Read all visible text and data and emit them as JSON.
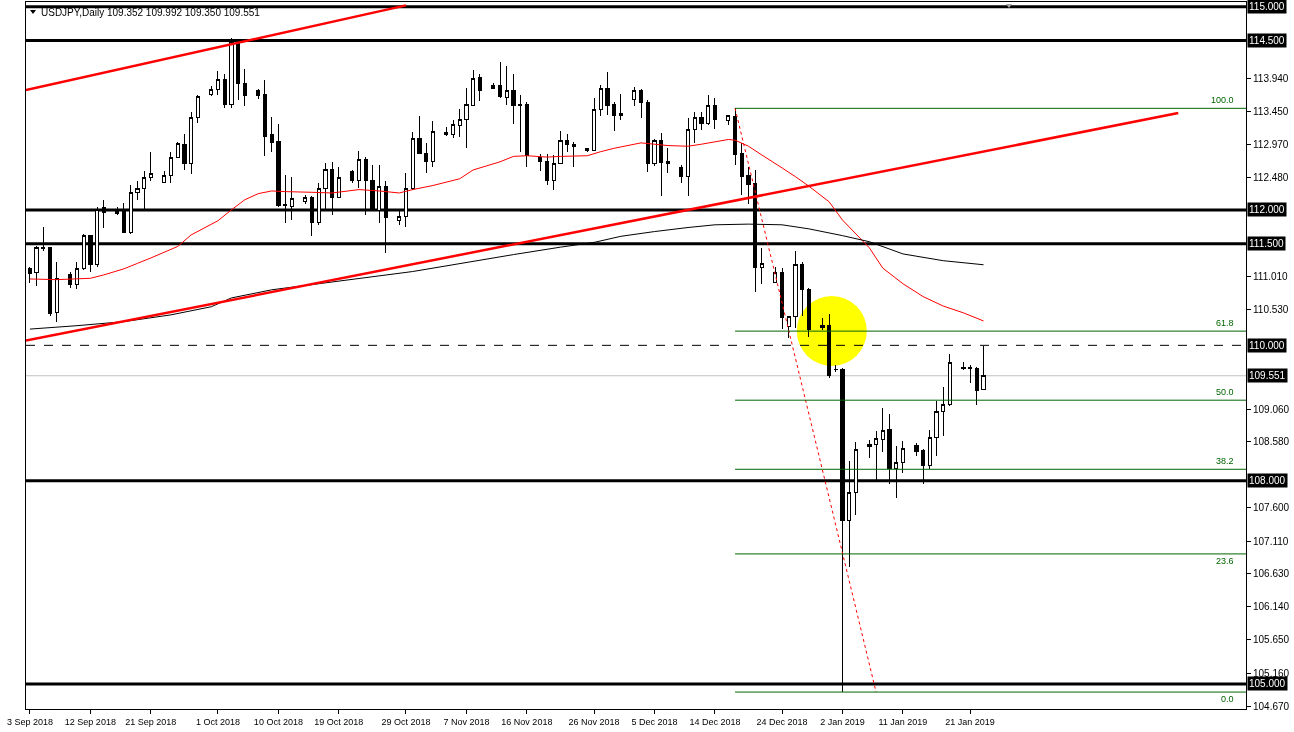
{
  "chart_data": {
    "type": "candlestick",
    "title": "USDJPY,Daily 109.352 109.992 109.350 109.551",
    "x": [
      "2018-09-03",
      "2018-09-04",
      "2018-09-05",
      "2018-09-06",
      "2018-09-07",
      "2018-09-09",
      "2018-09-10",
      "2018-09-11",
      "2018-09-12",
      "2018-09-13",
      "2018-09-14",
      "2018-09-16",
      "2018-09-17",
      "2018-09-18",
      "2018-09-19",
      "2018-09-20",
      "2018-09-21",
      "2018-09-23",
      "2018-09-24",
      "2018-09-25",
      "2018-09-26",
      "2018-09-27",
      "2018-09-28",
      "2018-09-30",
      "2018-10-01",
      "2018-10-02",
      "2018-10-03",
      "2018-10-04",
      "2018-10-05",
      "2018-10-07",
      "2018-10-08",
      "2018-10-09",
      "2018-10-10",
      "2018-10-11",
      "2018-10-12",
      "2018-10-14",
      "2018-10-15",
      "2018-10-16",
      "2018-10-17",
      "2018-10-18",
      "2018-10-19",
      "2018-10-21",
      "2018-10-22",
      "2018-10-23",
      "2018-10-24",
      "2018-10-25",
      "2018-10-26",
      "2018-10-28",
      "2018-10-29",
      "2018-10-30",
      "2018-10-31",
      "2018-11-01",
      "2018-11-02",
      "2018-11-04",
      "2018-11-05",
      "2018-11-06",
      "2018-11-07",
      "2018-11-08",
      "2018-11-09",
      "2018-11-11",
      "2018-11-12",
      "2018-11-13",
      "2018-11-14",
      "2018-11-15",
      "2018-11-16",
      "2018-11-18",
      "2018-11-19",
      "2018-11-20",
      "2018-11-21",
      "2018-11-22",
      "2018-11-23",
      "2018-11-25",
      "2018-11-26",
      "2018-11-27",
      "2018-11-28",
      "2018-11-29",
      "2018-11-30",
      "2018-12-02",
      "2018-12-03",
      "2018-12-04",
      "2018-12-05",
      "2018-12-06",
      "2018-12-07",
      "2018-12-09",
      "2018-12-10",
      "2018-12-11",
      "2018-12-12",
      "2018-12-13",
      "2018-12-14",
      "2018-12-16",
      "2018-12-17",
      "2018-12-18",
      "2018-12-19",
      "2018-12-20",
      "2018-12-21",
      "2018-12-23",
      "2018-12-24",
      "2018-12-25",
      "2018-12-26",
      "2018-12-27",
      "2018-12-28",
      "2018-12-30",
      "2018-12-31",
      "2019-01-01",
      "2019-01-02",
      "2019-01-03",
      "2019-01-04",
      "2019-01-06",
      "2019-01-07",
      "2019-01-08",
      "2019-01-09",
      "2019-01-10",
      "2019-01-11",
      "2019-01-13",
      "2019-01-14",
      "2019-01-15",
      "2019-01-16",
      "2019-01-17",
      "2019-01-18",
      "2019-01-20",
      "2019-01-21",
      "2019-01-22",
      "2019-01-23"
    ],
    "ohlc": [
      [
        111.14,
        111.16,
        110.92,
        111.06
      ],
      [
        111.07,
        111.47,
        110.88,
        111.45
      ],
      [
        111.45,
        111.75,
        111.39,
        111.43
      ],
      [
        111.44,
        111.45,
        110.44,
        110.47
      ],
      [
        110.48,
        111.23,
        110.35,
        110.98
      ],
      [
        111.04,
        111.08,
        110.85,
        110.9
      ],
      [
        110.9,
        111.23,
        110.83,
        111.13
      ],
      [
        111.13,
        111.64,
        111.12,
        111.62
      ],
      [
        111.62,
        111.63,
        111.09,
        111.2
      ],
      [
        111.2,
        112.05,
        111.16,
        112.01
      ],
      [
        112.03,
        112.15,
        111.73,
        111.96
      ],
      [
        112.01,
        112.05,
        111.93,
        111.95
      ],
      [
        111.98,
        112.1,
        111.66,
        111.67
      ],
      [
        111.67,
        112.37,
        111.65,
        112.26
      ],
      [
        112.26,
        112.43,
        112.14,
        112.32
      ],
      [
        112.32,
        112.58,
        112.02,
        112.48
      ],
      [
        112.48,
        112.86,
        112.43,
        112.54
      ],
      [
        112.4,
        112.57,
        112.39,
        112.51
      ],
      [
        112.51,
        112.85,
        112.4,
        112.77
      ],
      [
        112.77,
        113.0,
        112.76,
        112.98
      ],
      [
        112.96,
        113.12,
        112.59,
        112.69
      ],
      [
        112.69,
        113.45,
        112.53,
        113.37
      ],
      [
        113.37,
        113.7,
        113.29,
        113.67
      ],
      [
        113.71,
        113.83,
        113.68,
        113.78
      ],
      [
        113.78,
        114.05,
        113.7,
        113.93
      ],
      [
        113.93,
        114.0,
        113.5,
        113.55
      ],
      [
        113.55,
        114.54,
        113.5,
        114.49
      ],
      [
        114.49,
        114.51,
        113.62,
        113.87
      ],
      [
        113.87,
        114.08,
        113.54,
        113.69
      ],
      [
        113.77,
        113.78,
        113.64,
        113.69
      ],
      [
        113.7,
        113.92,
        112.8,
        113.09
      ],
      [
        113.11,
        113.37,
        112.85,
        113.0
      ],
      [
        113.01,
        113.27,
        112.04,
        112.07
      ],
      [
        112.07,
        112.52,
        111.81,
        112.08
      ],
      [
        112.05,
        112.49,
        111.85,
        112.17
      ],
      [
        112.13,
        112.22,
        112.09,
        112.19
      ],
      [
        112.19,
        112.21,
        111.61,
        111.81
      ],
      [
        111.81,
        112.39,
        111.78,
        112.32
      ],
      [
        112.32,
        112.69,
        111.98,
        112.6
      ],
      [
        112.6,
        112.71,
        111.93,
        112.19
      ],
      [
        112.19,
        112.64,
        112.17,
        112.48
      ],
      [
        112.56,
        112.59,
        112.4,
        112.44
      ],
      [
        112.44,
        112.87,
        112.32,
        112.74
      ],
      [
        112.74,
        112.78,
        111.93,
        112.43
      ],
      [
        112.44,
        112.66,
        111.98,
        111.99
      ],
      [
        111.99,
        112.67,
        111.8,
        112.34
      ],
      [
        112.34,
        112.42,
        111.36,
        111.89
      ],
      [
        111.84,
        111.98,
        111.78,
        111.91
      ],
      [
        111.91,
        112.54,
        111.75,
        112.31
      ],
      [
        112.31,
        113.15,
        112.3,
        113.05
      ],
      [
        113.05,
        113.38,
        112.83,
        112.84
      ],
      [
        112.84,
        112.99,
        112.54,
        112.71
      ],
      [
        112.71,
        113.31,
        112.64,
        113.16
      ],
      [
        113.14,
        113.22,
        113.09,
        113.11
      ],
      [
        113.12,
        113.33,
        113.06,
        113.26
      ],
      [
        113.24,
        113.49,
        113.08,
        113.33
      ],
      [
        113.33,
        113.8,
        112.92,
        113.55
      ],
      [
        113.54,
        114.07,
        113.53,
        113.94
      ],
      [
        113.95,
        114.0,
        113.61,
        113.77
      ],
      [
        113.79,
        113.87,
        113.78,
        113.83
      ],
      [
        113.83,
        114.19,
        113.65,
        113.68
      ],
      [
        113.66,
        114.13,
        113.55,
        113.77
      ],
      [
        113.77,
        114.0,
        113.27,
        113.54
      ],
      [
        113.54,
        113.7,
        112.85,
        113.55
      ],
      [
        113.55,
        113.59,
        112.63,
        112.8
      ],
      [
        112.77,
        112.82,
        112.58,
        112.71
      ],
      [
        112.71,
        112.82,
        112.37,
        112.43
      ],
      [
        112.43,
        112.81,
        112.29,
        112.69
      ],
      [
        112.69,
        113.17,
        112.68,
        113.02
      ],
      [
        113.02,
        113.12,
        112.86,
        112.97
      ],
      [
        112.97,
        113.0,
        112.64,
        112.93
      ],
      [
        112.9,
        112.91,
        112.85,
        112.88
      ],
      [
        112.88,
        113.65,
        112.87,
        113.49
      ],
      [
        113.49,
        113.84,
        113.39,
        113.79
      ],
      [
        113.79,
        114.03,
        113.4,
        113.54
      ],
      [
        113.55,
        113.6,
        113.17,
        113.39
      ],
      [
        113.39,
        113.71,
        113.33,
        113.43
      ],
      [
        113.63,
        113.81,
        113.54,
        113.76
      ],
      [
        113.76,
        113.79,
        113.36,
        113.58
      ],
      [
        113.58,
        113.63,
        112.56,
        112.68
      ],
      [
        112.68,
        113.04,
        112.65,
        113.03
      ],
      [
        113.03,
        113.13,
        112.21,
        112.7
      ],
      [
        112.71,
        112.91,
        112.54,
        112.69
      ],
      [
        112.62,
        112.67,
        112.4,
        112.5
      ],
      [
        112.5,
        113.36,
        112.21,
        113.18
      ],
      [
        113.18,
        113.44,
        112.99,
        113.36
      ],
      [
        113.36,
        113.45,
        113.18,
        113.27
      ],
      [
        113.27,
        113.7,
        113.26,
        113.54
      ],
      [
        113.54,
        113.65,
        113.19,
        113.34
      ],
      [
        113.32,
        113.39,
        113.25,
        113.39
      ],
      [
        113.38,
        113.5,
        112.66,
        112.82
      ],
      [
        112.83,
        112.99,
        112.22,
        112.49
      ],
      [
        112.51,
        112.64,
        112.08,
        112.38
      ],
      [
        112.39,
        112.59,
        110.79,
        111.15
      ],
      [
        111.15,
        111.44,
        110.9,
        111.21
      ],
      [
        110.93,
        111.16,
        110.92,
        111.07
      ],
      [
        111.07,
        111.14,
        110.24,
        110.41
      ],
      [
        110.28,
        110.44,
        110.11,
        110.42
      ],
      [
        110.42,
        111.4,
        110.25,
        111.2
      ],
      [
        111.2,
        111.23,
        110.43,
        110.82
      ],
      [
        110.83,
        110.84,
        110.13,
        110.24
      ],
      [
        110.27,
        110.4,
        110.23,
        110.3
      ],
      [
        110.3,
        110.46,
        109.52,
        109.55
      ],
      [
        109.65,
        109.71,
        109.6,
        109.64
      ],
      [
        109.65,
        109.66,
        104.88,
        107.41
      ],
      [
        107.41,
        108.29,
        106.73,
        107.83
      ],
      [
        107.83,
        108.57,
        107.49,
        108.46
      ],
      [
        108.5,
        108.6,
        108.33,
        108.54
      ],
      [
        108.54,
        108.74,
        108.01,
        108.62
      ],
      [
        108.61,
        109.07,
        108.42,
        108.74
      ],
      [
        108.75,
        108.99,
        107.95,
        108.18
      ],
      [
        108.18,
        108.52,
        107.75,
        108.27
      ],
      [
        108.27,
        108.59,
        108.12,
        108.48
      ],
      [
        108.52,
        108.56,
        108.37,
        108.43
      ],
      [
        108.44,
        108.47,
        107.95,
        108.22
      ],
      [
        108.22,
        108.75,
        108.17,
        108.64
      ],
      [
        108.64,
        109.18,
        108.36,
        109.03
      ],
      [
        109.03,
        109.38,
        108.66,
        109.13
      ],
      [
        109.13,
        109.87,
        109.11,
        109.74
      ],
      [
        109.66,
        109.75,
        109.64,
        109.67
      ],
      [
        109.67,
        109.71,
        109.45,
        109.66
      ],
      [
        109.66,
        109.68,
        109.12,
        109.33
      ],
      [
        109.352,
        109.992,
        109.35,
        109.551
      ]
    ],
    "color": "#000000",
    "colors": [
      "#000000",
      "#ffffff",
      "#000000",
      "#000000",
      "#ffffff",
      "#000000",
      "#ffffff",
      "#ffffff",
      "#000000",
      "#ffffff",
      "#000000",
      "#000000",
      "#000000",
      "#ffffff",
      "#ffffff",
      "#ffffff",
      "#ffffff",
      "#ffffff",
      "#ffffff",
      "#ffffff",
      "#000000",
      "#ffffff",
      "#ffffff",
      "#ffffff",
      "#ffffff",
      "#000000",
      "#ffffff",
      "#000000",
      "#000000",
      "#000000",
      "#000000",
      "#000000",
      "#000000",
      "#000000",
      "#ffffff",
      "#ffffff",
      "#000000",
      "#ffffff",
      "#ffffff",
      "#000000",
      "#ffffff",
      "#000000",
      "#ffffff",
      "#000000",
      "#000000",
      "#ffffff",
      "#000000",
      "#ffffff",
      "#ffffff",
      "#ffffff",
      "#000000",
      "#000000",
      "#ffffff",
      "#000000",
      "#ffffff",
      "#ffffff",
      "#ffffff",
      "#ffffff",
      "#000000",
      "#000000",
      "#000000",
      "#ffffff",
      "#000000",
      "#000000",
      "#000000",
      "#000000",
      "#000000",
      "#ffffff",
      "#ffffff",
      "#000000",
      "#000000",
      "#000000",
      "#ffffff",
      "#ffffff",
      "#000000",
      "#000000",
      "#000000",
      "#ffffff",
      "#000000",
      "#000000",
      "#ffffff",
      "#000000",
      "#000000",
      "#000000",
      "#ffffff",
      "#ffffff",
      "#000000",
      "#ffffff",
      "#000000",
      "#ffffff",
      "#000000",
      "#000000",
      "#000000",
      "#000000",
      "#ffffff",
      "#ffffff",
      "#000000",
      "#ffffff",
      "#ffffff",
      "#000000",
      "#000000",
      "#000000",
      "#000000",
      "#000000",
      "#000000",
      "#ffffff",
      "#ffffff",
      "#000000",
      "#ffffff",
      "#ffffff",
      "#000000",
      "#ffffff",
      "#ffffff",
      "#000000",
      "#000000",
      "#ffffff",
      "#ffffff",
      "#ffffff",
      "#ffffff",
      "#000000",
      "#000000",
      "#000000",
      "#ffffff"
    ],
    "xlim": [
      "2018-09-02T10:00",
      "2019-03-03T02:00"
    ],
    "xticks": [
      {
        "value": "2018-09-03",
        "label": "3 Sep 2018"
      },
      {
        "value": "2018-09-12",
        "label": "12 Sep 2018"
      },
      {
        "value": "2018-09-21",
        "label": "21 Sep 2018"
      },
      {
        "value": "2018-10-01",
        "label": "1 Oct 2018"
      },
      {
        "value": "2018-10-10",
        "label": "10 Oct 2018"
      },
      {
        "value": "2018-10-19",
        "label": "19 Oct 2018"
      },
      {
        "value": "2018-10-29",
        "label": "29 Oct 2018"
      },
      {
        "value": "2018-11-07",
        "label": "7 Nov 2018"
      },
      {
        "value": "2018-11-16",
        "label": "16 Nov 2018"
      },
      {
        "value": "2018-11-26",
        "label": "26 Nov 2018"
      },
      {
        "value": "2018-12-05",
        "label": "5 Dec 2018"
      },
      {
        "value": "2018-12-14",
        "label": "14 Dec 2018"
      },
      {
        "value": "2018-12-24",
        "label": "24 Dec 2018"
      },
      {
        "value": "2019-01-02",
        "label": "2 Jan 2019"
      },
      {
        "value": "2019-01-11",
        "label": "11 Jan 2019"
      },
      {
        "value": "2019-01-21",
        "label": "21 Jan 2019"
      }
    ],
    "ylim": [
      104.63,
      115.07
    ],
    "yticks": [
      {
        "value": 113.94,
        "label": "113.940"
      },
      {
        "value": 113.45,
        "label": "113.450"
      },
      {
        "value": 112.97,
        "label": "112.970"
      },
      {
        "value": 112.48,
        "label": "112.480"
      },
      {
        "value": 111.01,
        "label": "111.010"
      },
      {
        "value": 110.53,
        "label": "110.530"
      },
      {
        "value": 109.06,
        "label": "109.060"
      },
      {
        "value": 108.58,
        "label": "108.580"
      },
      {
        "value": 107.6,
        "label": "107.600"
      },
      {
        "value": 107.11,
        "label": "107.110"
      },
      {
        "value": 106.63,
        "label": "106.630"
      },
      {
        "value": 106.14,
        "label": "106.140"
      },
      {
        "value": 105.65,
        "label": "105.650"
      },
      {
        "value": 105.16,
        "label": "105.160"
      },
      {
        "value": 104.67,
        "label": "104.670"
      }
    ],
    "series": [
      {
        "type": "line",
        "color": "#ff0000",
        "x": [
          "2018-09-03",
          "2018-09-07",
          "2018-09-12",
          "2018-09-14",
          "2018-09-17",
          "2018-09-19",
          "2018-09-21",
          "2018-09-25",
          "2018-09-27",
          "2018-10-01",
          "2018-10-03",
          "2018-10-05",
          "2018-10-07",
          "2018-10-09",
          "2018-10-11",
          "2018-10-15",
          "2018-10-18",
          "2018-10-22",
          "2018-10-25",
          "2018-10-28",
          "2018-10-30",
          "2018-11-02",
          "2018-11-06",
          "2018-11-08",
          "2018-11-12",
          "2018-11-14",
          "2018-11-16",
          "2018-11-19",
          "2018-11-21",
          "2018-11-25",
          "2018-11-27",
          "2018-11-29",
          "2018-12-03",
          "2018-12-07",
          "2018-12-10",
          "2018-12-12",
          "2018-12-16",
          "2018-12-17",
          "2018-12-19",
          "2018-12-21",
          "2018-12-24",
          "2018-12-26",
          "2018-12-28",
          "2018-12-31",
          "2019-01-02",
          "2019-01-06",
          "2019-01-08",
          "2019-01-11",
          "2019-01-14",
          "2019-01-17",
          "2019-01-20",
          "2019-01-23"
        ],
        "values": [
          110.98,
          110.97,
          110.99,
          111.04,
          111.13,
          111.21,
          111.29,
          111.46,
          111.63,
          111.84,
          112.0,
          112.15,
          112.24,
          112.28,
          112.27,
          112.26,
          112.25,
          112.3,
          112.28,
          112.25,
          112.3,
          112.36,
          112.46,
          112.59,
          112.71,
          112.79,
          112.8,
          112.78,
          112.79,
          112.8,
          112.86,
          112.91,
          112.99,
          112.95,
          112.94,
          112.97,
          113.04,
          113.03,
          112.94,
          112.81,
          112.62,
          112.49,
          112.35,
          112.12,
          111.85,
          111.44,
          111.14,
          110.91,
          110.72,
          110.58,
          110.48,
          110.36
        ]
      },
      {
        "type": "line",
        "color": "#000000",
        "x": [
          "2018-09-03",
          "2018-09-10",
          "2018-09-17",
          "2018-09-24",
          "2018-09-30",
          "2018-10-03",
          "2018-10-09",
          "2018-10-16",
          "2018-10-30",
          "2018-11-14",
          "2018-11-21",
          "2018-11-26",
          "2018-11-30",
          "2018-12-05",
          "2018-12-10",
          "2018-12-14",
          "2018-12-19",
          "2018-12-24",
          "2018-12-28",
          "2019-01-02",
          "2019-01-06",
          "2019-01-11",
          "2019-01-17",
          "2019-01-23"
        ],
        "values": [
          110.24,
          110.29,
          110.35,
          110.45,
          110.57,
          110.7,
          110.82,
          110.91,
          111.09,
          111.34,
          111.45,
          111.52,
          111.61,
          111.68,
          111.74,
          111.78,
          111.79,
          111.78,
          111.72,
          111.62,
          111.53,
          111.35,
          111.25,
          111.19
        ]
      },
      {
        "type": "line",
        "color": "#ff0000",
        "x": [
          "2018-09-02T10:00",
          "2018-10-29"
        ],
        "values": [
          113.77,
          115.02
        ]
      },
      {
        "type": "line",
        "color": "#ff0000",
        "x": [
          "2018-09-02T10:00",
          "2019-02-21"
        ],
        "values": [
          110.07,
          113.43
        ]
      },
      {
        "type": "line",
        "color": "#ff0000",
        "line_style": "dotted",
        "x": [
          "2018-12-17",
          "2019-01-07"
        ],
        "values": [
          113.5,
          104.88
        ]
      },
      {
        "type": "line",
        "name": "100.0",
        "color": "#006400",
        "x": [
          "2018-12-17",
          "2019-03-03T02:00"
        ],
        "values": [
          113.5,
          113.5
        ]
      },
      {
        "type": "line",
        "name": "61.8",
        "color": "#006400",
        "x": [
          "2018-12-17",
          "2019-03-03T02:00"
        ],
        "values": [
          110.21,
          110.21
        ]
      },
      {
        "type": "line",
        "name": "50.0",
        "color": "#006400",
        "x": [
          "2018-12-17",
          "2019-03-03T02:00"
        ],
        "values": [
          109.19,
          109.19
        ]
      },
      {
        "type": "line",
        "name": "38.2",
        "color": "#006400",
        "x": [
          "2018-12-17",
          "2019-03-03T02:00"
        ],
        "values": [
          108.17,
          108.17
        ]
      },
      {
        "type": "line",
        "name": "23.6",
        "color": "#006400",
        "x": [
          "2018-12-17",
          "2019-03-03T02:00"
        ],
        "values": [
          106.92,
          106.92
        ]
      },
      {
        "type": "line",
        "name": "0.0",
        "color": "#006400",
        "x": [
          "2018-12-17",
          "2019-03-03T02:00"
        ],
        "values": [
          104.88,
          104.88
        ]
      }
    ],
    "ref_lines": [
      {
        "axis": "y",
        "value": 115,
        "label": "115.000",
        "color": "#000000"
      },
      {
        "axis": "y",
        "value": 114.5,
        "label": "114.500",
        "color": "#000000"
      },
      {
        "axis": "y",
        "value": 112,
        "label": "112.000",
        "color": "#000000"
      },
      {
        "axis": "y",
        "value": 111.5,
        "label": "111.500",
        "color": "#000000"
      },
      {
        "axis": "y",
        "value": 110,
        "label": "110.000",
        "color": "#000000",
        "line_style": "dashed"
      },
      {
        "axis": "y",
        "value": 109.551,
        "label": "109.551",
        "color": "#c0c0c0",
        "line_style": "solid"
      },
      {
        "axis": "y",
        "value": 108,
        "label": "108.000",
        "color": "#000000"
      },
      {
        "axis": "y",
        "value": 105,
        "label": "105.000",
        "color": "#000000"
      }
    ]
  }
}
